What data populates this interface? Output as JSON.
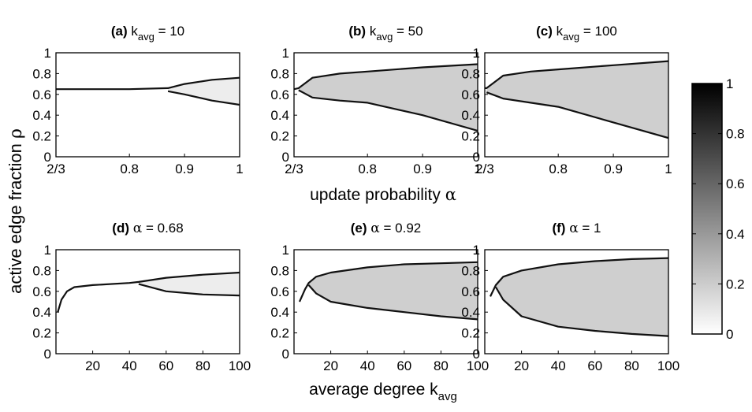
{
  "shared_labels": {
    "ylabel_main": "active edge fraction ",
    "ylabel_symbol": "ρ",
    "xlabel_top_main": "update probability ",
    "xlabel_top_symbol": "α",
    "xlabel_bottom_main": "average degree k",
    "xlabel_bottom_sub": "avg"
  },
  "chart_data": [
    {
      "type": "heatmap",
      "panel": "(a)",
      "title_prefix": "(a) k",
      "title_sub": "avg",
      "title_suffix": " = 10",
      "x_var": "alpha",
      "xlim": [
        0.6667,
        1
      ],
      "xticks": [
        0.6667,
        0.8,
        0.9,
        1
      ],
      "xtick_labels": [
        "2/3",
        "0.8",
        "0.9",
        "1"
      ],
      "ylim": [
        0,
        1
      ],
      "yticks": [
        0,
        0.2,
        0.4,
        0.6,
        0.8,
        1
      ],
      "ytick_labels": [
        "0",
        "0.2",
        "0.4",
        "0.6",
        "0.8",
        "1"
      ],
      "bifurcation_point": 0.87,
      "branches": [
        {
          "name": "upper",
          "x": [
            0.6667,
            0.8,
            0.87,
            0.9,
            0.95,
            1
          ],
          "y": [
            0.65,
            0.65,
            0.66,
            0.7,
            0.74,
            0.76
          ]
        },
        {
          "name": "lower",
          "x": [
            0.87,
            0.9,
            0.95,
            1
          ],
          "y": [
            0.63,
            0.6,
            0.54,
            0.5
          ]
        }
      ]
    },
    {
      "type": "heatmap",
      "panel": "(b)",
      "title_prefix": "(b) k",
      "title_sub": "avg",
      "title_suffix": " = 50",
      "x_var": "alpha",
      "xlim": [
        0.6667,
        1
      ],
      "xticks": [
        0.6667,
        0.8,
        0.9,
        1
      ],
      "xtick_labels": [
        "2/3",
        "0.8",
        "0.9",
        "1"
      ],
      "ylim": [
        0,
        1
      ],
      "yticks": [
        0,
        0.2,
        0.4,
        0.6,
        0.8,
        1
      ],
      "ytick_labels": [
        "0",
        "0.2",
        "0.4",
        "0.6",
        "0.8",
        "1"
      ],
      "bifurcation_point": 0.675,
      "branches": [
        {
          "name": "upper",
          "x": [
            0.6667,
            0.675,
            0.7,
            0.75,
            0.8,
            0.9,
            1
          ],
          "y": [
            0.65,
            0.66,
            0.76,
            0.8,
            0.82,
            0.86,
            0.89
          ]
        },
        {
          "name": "lower",
          "x": [
            0.675,
            0.7,
            0.75,
            0.8,
            0.9,
            1
          ],
          "y": [
            0.64,
            0.57,
            0.54,
            0.52,
            0.4,
            0.25
          ]
        }
      ]
    },
    {
      "type": "heatmap",
      "panel": "(c)",
      "title_prefix": "(c) k",
      "title_sub": "avg",
      "title_suffix": " = 100",
      "x_var": "alpha",
      "xlim": [
        0.6667,
        1
      ],
      "xticks": [
        0.6667,
        0.8,
        0.9,
        1
      ],
      "xtick_labels": [
        "2/3",
        "0.8",
        "0.9",
        "1"
      ],
      "ylim": [
        0,
        1
      ],
      "yticks": [
        0,
        0.2,
        0.4,
        0.6,
        0.8,
        1
      ],
      "ytick_labels": [
        "0",
        "0.2",
        "0.4",
        "0.6",
        "0.8",
        "1"
      ],
      "bifurcation_point": 0.67,
      "branches": [
        {
          "name": "upper",
          "x": [
            0.6667,
            0.67,
            0.7,
            0.75,
            0.8,
            0.9,
            1
          ],
          "y": [
            0.66,
            0.66,
            0.78,
            0.82,
            0.84,
            0.88,
            0.92
          ]
        },
        {
          "name": "lower",
          "x": [
            0.67,
            0.7,
            0.75,
            0.8,
            0.9,
            1
          ],
          "y": [
            0.62,
            0.56,
            0.52,
            0.48,
            0.33,
            0.18
          ]
        }
      ]
    },
    {
      "type": "heatmap",
      "panel": "(d)",
      "title_prefix": "(d) ",
      "title_symbol": "α",
      "title_suffix": " = 0.68",
      "x_var": "k_avg",
      "xlim": [
        0,
        100
      ],
      "xticks": [
        20,
        40,
        60,
        80,
        100
      ],
      "xtick_labels": [
        "20",
        "40",
        "60",
        "80",
        "100"
      ],
      "ylim": [
        0,
        1
      ],
      "yticks": [
        0,
        0.2,
        0.4,
        0.6,
        0.8,
        1
      ],
      "ytick_labels": [
        "0",
        "0.2",
        "0.4",
        "0.6",
        "0.8",
        "1"
      ],
      "bifurcation_point": 45,
      "branches": [
        {
          "name": "upper",
          "x": [
            1,
            3,
            6,
            10,
            20,
            40,
            45,
            60,
            80,
            100
          ],
          "y": [
            0.4,
            0.52,
            0.6,
            0.64,
            0.66,
            0.68,
            0.69,
            0.73,
            0.76,
            0.78
          ]
        },
        {
          "name": "lower",
          "x": [
            45,
            60,
            80,
            100
          ],
          "y": [
            0.67,
            0.6,
            0.57,
            0.56
          ]
        }
      ]
    },
    {
      "type": "heatmap",
      "panel": "(e)",
      "title_prefix": "(e) ",
      "title_symbol": "α",
      "title_suffix": " = 0.92",
      "x_var": "k_avg",
      "xlim": [
        0,
        100
      ],
      "xticks": [
        20,
        40,
        60,
        80,
        100
      ],
      "xtick_labels": [
        "20",
        "40",
        "60",
        "80",
        "100"
      ],
      "ylim": [
        0,
        1
      ],
      "yticks": [
        0,
        0.2,
        0.4,
        0.6,
        0.8,
        1
      ],
      "ytick_labels": [
        "0",
        "0.2",
        "0.4",
        "0.6",
        "0.8",
        "1"
      ],
      "bifurcation_point": 8,
      "branches": [
        {
          "name": "upper",
          "x": [
            3,
            6,
            8,
            12,
            20,
            40,
            60,
            80,
            100
          ],
          "y": [
            0.5,
            0.62,
            0.68,
            0.74,
            0.78,
            0.83,
            0.86,
            0.87,
            0.88
          ]
        },
        {
          "name": "lower",
          "x": [
            8,
            12,
            20,
            30,
            40,
            60,
            80,
            100
          ],
          "y": [
            0.66,
            0.58,
            0.5,
            0.47,
            0.44,
            0.4,
            0.36,
            0.33
          ]
        }
      ]
    },
    {
      "type": "heatmap",
      "panel": "(f)",
      "title_prefix": "(f) ",
      "title_symbol": "α",
      "title_suffix": " = 1",
      "x_var": "k_avg",
      "xlim": [
        0,
        100
      ],
      "xticks": [
        20,
        40,
        60,
        80,
        100
      ],
      "xtick_labels": [
        "20",
        "40",
        "60",
        "80",
        "100"
      ],
      "ylim": [
        0,
        1
      ],
      "yticks": [
        0,
        0.2,
        0.4,
        0.6,
        0.8,
        1
      ],
      "ytick_labels": [
        "0",
        "0.2",
        "0.4",
        "0.6",
        "0.8",
        "1"
      ],
      "bifurcation_point": 6,
      "branches": [
        {
          "name": "upper",
          "x": [
            3,
            6,
            10,
            20,
            40,
            60,
            80,
            100
          ],
          "y": [
            0.55,
            0.66,
            0.74,
            0.8,
            0.86,
            0.89,
            0.91,
            0.92
          ]
        },
        {
          "name": "lower",
          "x": [
            6,
            10,
            20,
            40,
            60,
            80,
            100
          ],
          "y": [
            0.64,
            0.52,
            0.36,
            0.26,
            0.22,
            0.19,
            0.17
          ]
        }
      ]
    }
  ],
  "colorbar": {
    "title": "",
    "range": [
      0,
      1
    ],
    "ticks": [
      0,
      0.2,
      0.4,
      0.6,
      0.8,
      1
    ],
    "tick_labels": [
      "0",
      "0.2",
      "0.4",
      "0.6",
      "0.8",
      "1"
    ],
    "low_color": "#ffffff",
    "high_color": "#000000"
  }
}
